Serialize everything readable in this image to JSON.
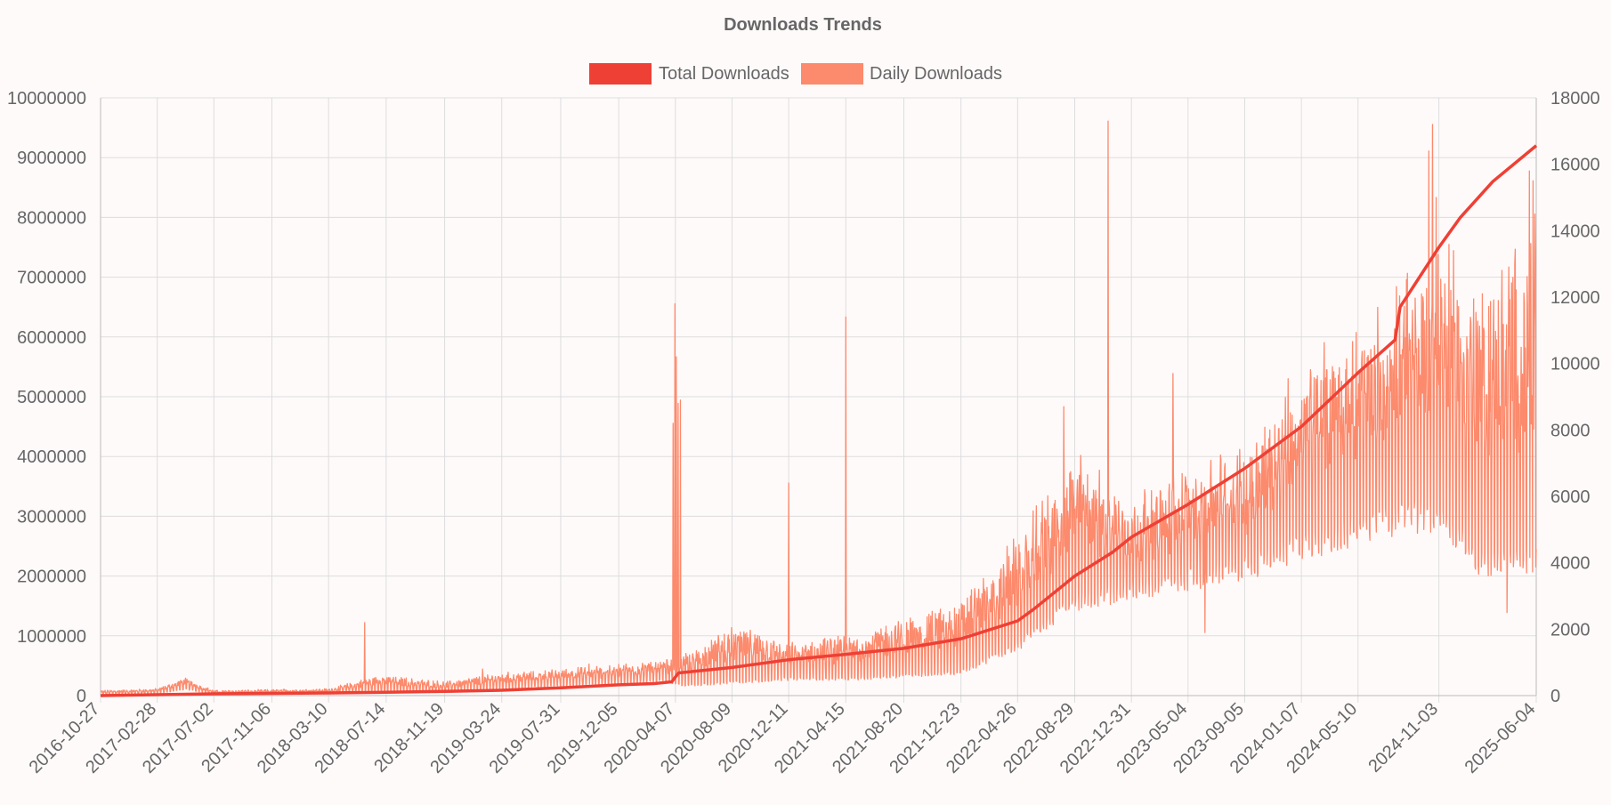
{
  "chart_data": {
    "type": "line",
    "title": "Downloads Trends",
    "legend": {
      "placement": "top-center"
    },
    "grid": true,
    "x_tick_labels": [
      "2016-10-27",
      "2017-02-28",
      "2017-07-02",
      "2017-11-06",
      "2018-03-10",
      "2018-07-14",
      "2018-11-19",
      "2019-03-24",
      "2019-07-31",
      "2019-12-05",
      "2020-04-07",
      "2020-08-09",
      "2020-12-11",
      "2021-04-15",
      "2021-08-20",
      "2021-12-23",
      "2022-04-26",
      "2022-08-29",
      "2022-12-31",
      "2023-05-04",
      "2023-09-05",
      "2024-01-07",
      "2024-05-10",
      "2024-11-03",
      "2025-06-04"
    ],
    "xlim": [
      "2016-10-27",
      "2025-06-04"
    ],
    "y_left": {
      "ticks": [
        "0",
        "1000000",
        "2000000",
        "3000000",
        "4000000",
        "5000000",
        "6000000",
        "7000000",
        "8000000",
        "9000000",
        "10000000"
      ],
      "ylim": [
        0,
        10000000
      ]
    },
    "y_right": {
      "ticks": [
        "0",
        "2000",
        "4000",
        "6000",
        "8000",
        "10000",
        "12000",
        "14000",
        "16000",
        "18000"
      ],
      "ylim": [
        0,
        18000
      ]
    },
    "series": [
      {
        "name": "Total Downloads",
        "axis": "left",
        "color": "#ee4035",
        "points": [
          [
            "2016-10-27",
            0
          ],
          [
            "2017-07-02",
            30000
          ],
          [
            "2018-03-10",
            45000
          ],
          [
            "2018-07-14",
            55000
          ],
          [
            "2018-11-19",
            70000
          ],
          [
            "2019-03-24",
            90000
          ],
          [
            "2019-07-31",
            130000
          ],
          [
            "2019-12-05",
            180000
          ],
          [
            "2020-02-20",
            200000
          ],
          [
            "2020-03-30",
            230000
          ],
          [
            "2020-04-14",
            380000
          ],
          [
            "2020-08-09",
            470000
          ],
          [
            "2020-12-11",
            600000
          ],
          [
            "2021-04-15",
            690000
          ],
          [
            "2021-08-20",
            790000
          ],
          [
            "2021-12-23",
            950000
          ],
          [
            "2022-04-26",
            1250000
          ],
          [
            "2022-06-01",
            1450000
          ],
          [
            "2022-08-29",
            2000000
          ],
          [
            "2022-11-20",
            2400000
          ],
          [
            "2022-12-31",
            2650000
          ],
          [
            "2023-05-04",
            3200000
          ],
          [
            "2023-09-05",
            3800000
          ],
          [
            "2024-01-07",
            4500000
          ],
          [
            "2024-05-10",
            5400000
          ],
          [
            "2024-07-30",
            5950000
          ],
          [
            "2024-08-10",
            6500000
          ],
          [
            "2024-11-03",
            7500000
          ],
          [
            "2024-12-20",
            8000000
          ],
          [
            "2025-03-01",
            8600000
          ],
          [
            "2025-06-04",
            9200000
          ]
        ]
      },
      {
        "name": "Daily Downloads",
        "axis": "right",
        "color": "#fc8a6c",
        "levels": [
          [
            "2016-10-27",
            20,
            150
          ],
          [
            "2017-02-28",
            60,
            200
          ],
          [
            "2017-05-01",
            200,
            500
          ],
          [
            "2017-07-02",
            40,
            150
          ],
          [
            "2018-03-10",
            50,
            200
          ],
          [
            "2018-07-01",
            100,
            600
          ],
          [
            "2018-11-19",
            100,
            400
          ],
          [
            "2019-03-24",
            200,
            650
          ],
          [
            "2019-07-31",
            300,
            750
          ],
          [
            "2019-12-05",
            350,
            900
          ],
          [
            "2020-03-01",
            450,
            1000
          ],
          [
            "2020-05-01",
            300,
            1200
          ],
          [
            "2020-08-09",
            400,
            2000
          ],
          [
            "2020-12-11",
            500,
            1500
          ],
          [
            "2021-04-15",
            500,
            1700
          ],
          [
            "2021-08-20",
            600,
            2200
          ],
          [
            "2021-12-23",
            700,
            2700
          ],
          [
            "2022-04-26",
            1500,
            4500
          ],
          [
            "2022-08-29",
            2800,
            7000
          ],
          [
            "2022-12-31",
            3200,
            5500
          ],
          [
            "2023-05-04",
            3500,
            6500
          ],
          [
            "2023-09-05",
            3800,
            7000
          ],
          [
            "2024-01-07",
            4500,
            9500
          ],
          [
            "2024-05-10",
            5000,
            10500
          ],
          [
            "2024-11-03",
            5500,
            13000
          ],
          [
            "2025-02-01",
            4000,
            11500
          ],
          [
            "2025-06-04",
            4000,
            13500
          ]
        ],
        "spikes": [
          [
            "2018-05-28",
            2200
          ],
          [
            "2019-02-10",
            800
          ],
          [
            "2019-10-01",
            950
          ],
          [
            "2020-04-02",
            8200
          ],
          [
            "2020-04-06",
            11800
          ],
          [
            "2020-04-09",
            10200
          ],
          [
            "2020-04-13",
            8800
          ],
          [
            "2020-04-18",
            8900
          ],
          [
            "2020-12-11",
            6400
          ],
          [
            "2021-04-15",
            11400
          ],
          [
            "2022-08-05",
            8700
          ],
          [
            "2022-11-10",
            17300
          ],
          [
            "2023-04-01",
            9700
          ],
          [
            "2024-10-12",
            16400
          ],
          [
            "2024-10-20",
            17200
          ],
          [
            "2024-10-28",
            15000
          ],
          [
            "2025-05-20",
            15800
          ],
          [
            "2025-05-28",
            15500
          ],
          [
            "2025-06-01",
            14500
          ],
          [
            "2023-06-10",
            1900
          ],
          [
            "2025-04-01",
            2500
          ]
        ]
      }
    ]
  }
}
